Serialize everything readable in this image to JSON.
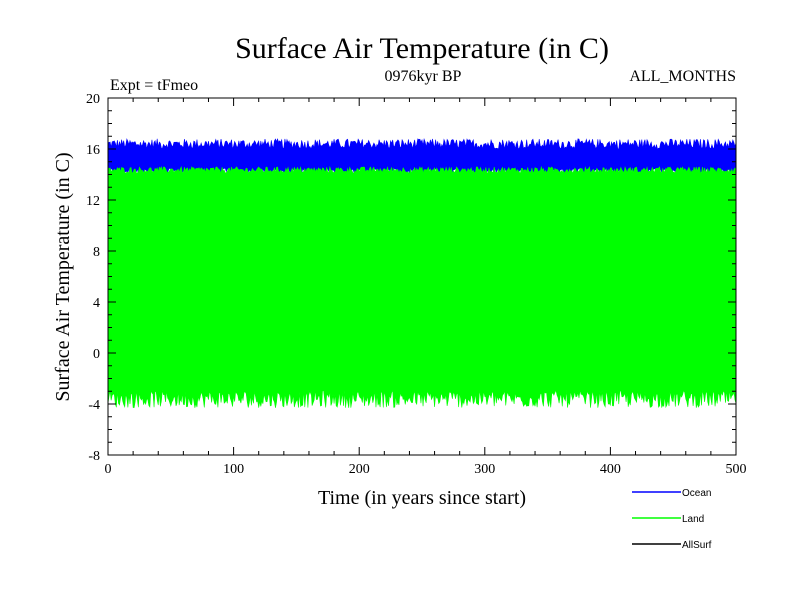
{
  "chart_data": {
    "type": "line",
    "title": "Surface Air Temperature (in C)",
    "subtitle": "0976kyr BP",
    "experiment": "Expt = tFmeo",
    "months": "ALL_MONTHS",
    "xlabel": "Time (in years since start)",
    "ylabel": "Surface Air Temperature (in C)",
    "xlim": [
      0,
      500
    ],
    "ylim": [
      -8,
      20
    ],
    "x_ticks": [
      0,
      100,
      200,
      300,
      400,
      500
    ],
    "y_ticks": [
      -8,
      -4,
      0,
      4,
      8,
      12,
      16,
      20
    ],
    "x_tick_labels": [
      "0",
      "100",
      "200",
      "300",
      "400",
      "500"
    ],
    "y_tick_labels": [
      "-8",
      "-4",
      "0",
      "4",
      "8",
      "12",
      "16",
      "20"
    ],
    "grid": false,
    "legend_position": "bottom-right",
    "series": [
      {
        "name": "Ocean",
        "color": "#0000ff",
        "band_min": [
          14.0,
          14.5
        ],
        "band_max": [
          16.0,
          16.8
        ],
        "x": [
          0,
          500
        ]
      },
      {
        "name": "Land",
        "color": "#00ff00",
        "band_min": [
          -4.3,
          -2.9
        ],
        "band_max": [
          14.1,
          14.6
        ],
        "x": [
          0,
          500
        ]
      },
      {
        "name": "AllSurf",
        "color": "#000000",
        "x": [
          0,
          500
        ]
      }
    ]
  }
}
